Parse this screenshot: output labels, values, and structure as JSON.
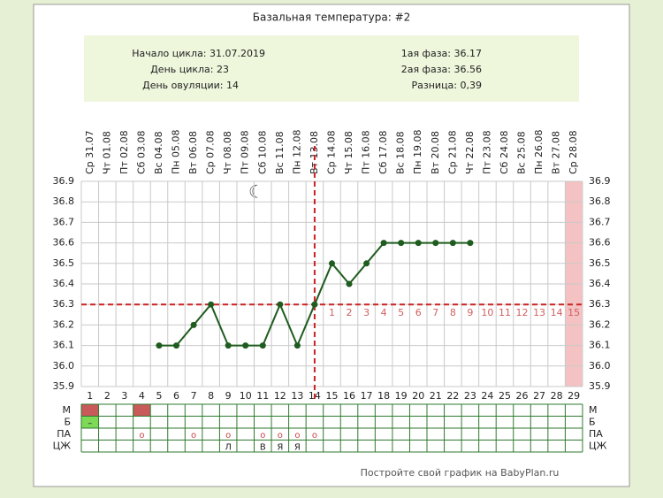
{
  "chart_data": {
    "type": "line",
    "title": "Базальная температура: #2",
    "info_left": [
      "Начало цикла: 31.07.2019",
      "День цикла: 23",
      "День овуляции: 14"
    ],
    "info_right": [
      "1ая фаза: 36.17",
      "2ая фаза: 36.56",
      "Разница: 0,39"
    ],
    "dates": [
      "Ср 31.07",
      "Чт 01.08",
      "Пт 02.08",
      "Сб 03.08",
      "Вс 04.08",
      "Пн 05.08",
      "Вт 06.08",
      "Ср 07.08",
      "Чт 08.08",
      "Пт 09.08",
      "Сб 10.08",
      "Вс 11.08",
      "Пн 12.08",
      "Вт 13.08",
      "Ср 14.08",
      "Чт 15.08",
      "Пт 16.08",
      "Сб 17.08",
      "Вс 18.08",
      "Пн 19.08",
      "Вт 20.08",
      "Ср 21.08",
      "Чт 22.08",
      "Пт 23.08",
      "Сб 24.08",
      "Вс 25.08",
      "Пн 26.08",
      "Вт 27.08",
      "Ср 28.08"
    ],
    "x": [
      1,
      2,
      3,
      4,
      5,
      6,
      7,
      8,
      9,
      10,
      11,
      12,
      13,
      14,
      15,
      16,
      17,
      18,
      19,
      20,
      21,
      22,
      23,
      24,
      25,
      26,
      27,
      28,
      29
    ],
    "values": [
      null,
      null,
      null,
      null,
      36.1,
      36.1,
      36.2,
      36.3,
      36.1,
      36.1,
      36.1,
      36.3,
      36.1,
      36.3,
      36.5,
      36.4,
      36.5,
      36.6,
      36.6,
      36.6,
      36.6,
      36.6,
      36.6,
      null,
      null,
      null,
      null,
      null,
      null
    ],
    "color": "#1f5c1f",
    "ylim": [
      35.9,
      36.9
    ],
    "yticks": [
      35.9,
      {
        "value": 36,
        "label": "36.0"
      },
      36.1,
      36.2,
      36.3,
      36.4,
      36.5,
      36.6,
      36.7,
      36.8,
      36.9
    ],
    "grid": true,
    "cover_line": 36.3,
    "ovulation_day": 14,
    "highlight_day": 29,
    "luteal_days": [
      1,
      2,
      3,
      4,
      5,
      6,
      7,
      8,
      9,
      10,
      11,
      12,
      13,
      14,
      15
    ],
    "table": [
      {
        "label": "М",
        "color": "#c85a5a",
        "cells": [
          {
            "day": 1
          },
          {
            "day": 4
          }
        ]
      },
      {
        "label": "Б",
        "color": "#7ed957",
        "cells": [
          {
            "day": 1,
            "text": "–"
          }
        ]
      },
      {
        "label": "ПА",
        "cells": [
          {
            "day": 4,
            "text": "о"
          },
          {
            "day": 7,
            "text": "о"
          },
          {
            "day": 9,
            "text": "о"
          },
          {
            "day": 11,
            "text": "о"
          },
          {
            "day": 12,
            "text": "о"
          },
          {
            "day": 13,
            "text": "о"
          },
          {
            "day": 14,
            "text": "о"
          }
        ]
      },
      {
        "label": "ЦЖ",
        "cells": [
          {
            "day": 9,
            "text": "Л"
          },
          {
            "day": 11,
            "text": "В"
          },
          {
            "day": 12,
            "text": "Я"
          },
          {
            "day": 13,
            "text": "Я"
          }
        ]
      }
    ],
    "footer": "Постройте свой график на BabyPlan.ru"
  }
}
